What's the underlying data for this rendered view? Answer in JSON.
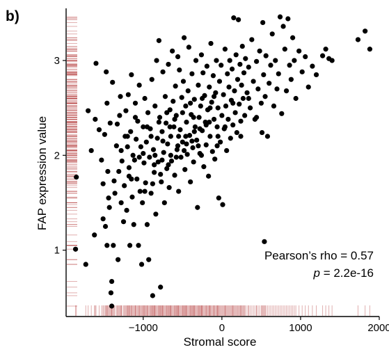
{
  "panel_label": "b)",
  "chart_data": {
    "type": "scatter",
    "xlabel": "Stromal score",
    "ylabel": "FAP expression value",
    "xlim": [
      -1980,
      2000
    ],
    "ylim": [
      0.3,
      3.55
    ],
    "x_ticks": [
      -1000,
      0,
      1000,
      2000
    ],
    "x_tick_labels": [
      "−1000",
      "0",
      "1000",
      "2000"
    ],
    "y_ticks": [
      1,
      2,
      3
    ],
    "y_tick_labels": [
      "1",
      "2",
      "3"
    ],
    "grid": false,
    "rug": true,
    "colors": {
      "points": "#000000",
      "rug": "#a51616",
      "axis": "#000000"
    },
    "annotation": {
      "line1": "Pearson’s rho = 0.57",
      "line2_italic": "p",
      "line2_rest": " = 2.2e-16"
    },
    "points": [
      [
        -1850,
        1.77
      ],
      [
        -1860,
        1.01
      ],
      [
        -1730,
        0.85
      ],
      [
        -1700,
        2.47
      ],
      [
        -1660,
        2.05
      ],
      [
        -1620,
        1.16
      ],
      [
        -1610,
        2.38
      ],
      [
        -1600,
        2.97
      ],
      [
        -1560,
        2.27
      ],
      [
        -1530,
        1.95
      ],
      [
        -1510,
        1.7
      ],
      [
        -1510,
        1.33
      ],
      [
        -1490,
        2.22
      ],
      [
        -1480,
        1.25
      ],
      [
        -1470,
        2.88
      ],
      [
        -1460,
        2.55
      ],
      [
        -1460,
        1.05
      ],
      [
        -1450,
        1.83
      ],
      [
        -1440,
        1.55
      ],
      [
        -1430,
        1.45
      ],
      [
        -1420,
        2.34
      ],
      [
        -1410,
        0.55
      ],
      [
        -1400,
        0.67
      ],
      [
        -1400,
        0.41
      ],
      [
        -1390,
        2.77
      ],
      [
        -1380,
        1.05
      ],
      [
        -1370,
        1.73
      ],
      [
        -1360,
        1.6
      ],
      [
        -1340,
        2.1
      ],
      [
        -1330,
        2.33
      ],
      [
        -1320,
        0.9
      ],
      [
        -1310,
        1.83
      ],
      [
        -1300,
        2.42
      ],
      [
        -1290,
        2.62
      ],
      [
        -1280,
        2.05
      ],
      [
        -1270,
        1.94
      ],
      [
        -1250,
        1.3
      ],
      [
        -1240,
        1.68
      ],
      [
        -1230,
        2.2
      ],
      [
        -1220,
        2.47
      ],
      [
        -1210,
        1.42
      ],
      [
        -1200,
        2.09
      ],
      [
        -1190,
        2.64
      ],
      [
        -1180,
        1.87
      ],
      [
        -1170,
        1.05
      ],
      [
        -1160,
        2.25
      ],
      [
        -1150,
        2.85
      ],
      [
        -1140,
        1.56
      ],
      [
        -1130,
        2.0
      ],
      [
        -1120,
        1.27
      ],
      [
        -1110,
        1.95
      ],
      [
        -1100,
        2.55
      ],
      [
        -1090,
        2.17
      ],
      [
        -1080,
        1.75
      ],
      [
        -1070,
        2.36
      ],
      [
        -1060,
        1.05
      ],
      [
        -1050,
        2.74
      ],
      [
        -1040,
        1.62
      ],
      [
        -1030,
        2.09
      ],
      [
        -1020,
        0.85
      ],
      [
        -1010,
        1.5
      ],
      [
        -1000,
        2.3
      ],
      [
        -990,
        1.92
      ],
      [
        -980,
        2.6
      ],
      [
        -970,
        1.71
      ],
      [
        -960,
        2.14
      ],
      [
        -950,
        1.27
      ],
      [
        -940,
        2.45
      ],
      [
        -930,
        0.9
      ],
      [
        -920,
        1.98
      ],
      [
        -910,
        2.28
      ],
      [
        -900,
        1.6
      ],
      [
        -890,
        2.8
      ],
      [
        -880,
        0.52
      ],
      [
        -870,
        2.06
      ],
      [
        -860,
        1.82
      ],
      [
        -850,
        2.52
      ],
      [
        -840,
        1.38
      ],
      [
        -830,
        3.0
      ],
      [
        -820,
        2.18
      ],
      [
        -810,
        1.93
      ],
      [
        -800,
        3.21
      ],
      [
        -790,
        2.4
      ],
      [
        -780,
        0.61
      ],
      [
        -770,
        1.72
      ],
      [
        -760,
        2.25
      ],
      [
        -750,
        2.88
      ],
      [
        -740,
        2.03
      ],
      [
        -730,
        1.5
      ],
      [
        -720,
        2.62
      ],
      [
        -710,
        2.34
      ],
      [
        -700,
        1.86
      ],
      [
        -690,
        2.12
      ],
      [
        -680,
        2.96
      ],
      [
        -670,
        1.66
      ],
      [
        -660,
        2.48
      ],
      [
        -650,
        2.2
      ],
      [
        -640,
        1.94
      ],
      [
        -630,
        3.1
      ],
      [
        -620,
        2.57
      ],
      [
        -610,
        2.3
      ],
      [
        -600,
        1.79
      ],
      [
        -590,
        2.73
      ],
      [
        -580,
        2.42
      ],
      [
        -570,
        2.06
      ],
      [
        -560,
        3.04
      ],
      [
        -550,
        1.62
      ],
      [
        -540,
        2.9
      ],
      [
        -530,
        2.27
      ],
      [
        -520,
        1.98
      ],
      [
        -510,
        2.61
      ],
      [
        -500,
        2.14
      ],
      [
        -490,
        2.78
      ],
      [
        -480,
        3.24
      ],
      [
        -470,
        1.85
      ],
      [
        -460,
        2.52
      ],
      [
        -450,
        2.35
      ],
      [
        -440,
        2.01
      ],
      [
        -430,
        2.68
      ],
      [
        -420,
        3.14
      ],
      [
        -410,
        2.21
      ],
      [
        -400,
        1.72
      ],
      [
        -390,
        2.43
      ],
      [
        -380,
        2.86
      ],
      [
        -370,
        2.08
      ],
      [
        -360,
        1.93
      ],
      [
        -350,
        2.59
      ],
      [
        -340,
        2.3
      ],
      [
        -330,
        3.0
      ],
      [
        -320,
        2.16
      ],
      [
        -310,
        1.45
      ],
      [
        -300,
        2.74
      ],
      [
        -290,
        2.4
      ],
      [
        -280,
        2.02
      ],
      [
        -270,
        2.52
      ],
      [
        -260,
        3.06
      ],
      [
        -250,
        2.26
      ],
      [
        -240,
        2.87
      ],
      [
        -230,
        1.88
      ],
      [
        -220,
        2.63
      ],
      [
        -210,
        2.35
      ],
      [
        -200,
        2.11
      ],
      [
        -190,
        2.94
      ],
      [
        -180,
        2.48
      ],
      [
        -170,
        1.78
      ],
      [
        -160,
        2.72
      ],
      [
        -150,
        2.2
      ],
      [
        -140,
        3.18
      ],
      [
        -130,
        2.56
      ],
      [
        -120,
        2.04
      ],
      [
        -110,
        2.84
      ],
      [
        -100,
        2.38
      ],
      [
        -90,
        1.96
      ],
      [
        -80,
        2.66
      ],
      [
        -70,
        3.0
      ],
      [
        -60,
        2.3
      ],
      [
        -50,
        2.5
      ],
      [
        -40,
        1.55
      ],
      [
        -30,
        2.78
      ],
      [
        -20,
        2.14
      ],
      [
        -10,
        2.95
      ],
      [
        0,
        2.42
      ],
      [
        10,
        1.48
      ],
      [
        20,
        2.64
      ],
      [
        30,
        2.28
      ],
      [
        40,
        3.12
      ],
      [
        50,
        2.52
      ],
      [
        60,
        2.05
      ],
      [
        70,
        2.86
      ],
      [
        80,
        2.38
      ],
      [
        90,
        2.72
      ],
      [
        100,
        3.0
      ],
      [
        110,
        2.18
      ],
      [
        120,
        2.58
      ],
      [
        130,
        2.91
      ],
      [
        140,
        2.32
      ],
      [
        150,
        3.45
      ],
      [
        160,
        2.68
      ],
      [
        170,
        2.45
      ],
      [
        180,
        3.06
      ],
      [
        190,
        2.24
      ],
      [
        200,
        2.8
      ],
      [
        210,
        3.43
      ],
      [
        220,
        2.54
      ],
      [
        230,
        2.96
      ],
      [
        240,
        2.36
      ],
      [
        250,
        2.74
      ],
      [
        260,
        3.15
      ],
      [
        270,
        2.6
      ],
      [
        280,
        2.87
      ],
      [
        290,
        2.42
      ],
      [
        300,
        3.02
      ],
      [
        320,
        2.66
      ],
      [
        340,
        2.93
      ],
      [
        360,
        2.5
      ],
      [
        380,
        3.22
      ],
      [
        400,
        2.78
      ],
      [
        420,
        2.38
      ],
      [
        440,
        2.99
      ],
      [
        460,
        2.7
      ],
      [
        480,
        3.1
      ],
      [
        500,
        2.55
      ],
      [
        510,
        2.24
      ],
      [
        520,
        3.4
      ],
      [
        530,
        2.85
      ],
      [
        540,
        1.09
      ],
      [
        550,
        2.62
      ],
      [
        560,
        3.05
      ],
      [
        580,
        2.2
      ],
      [
        600,
        2.76
      ],
      [
        620,
        2.95
      ],
      [
        640,
        3.28
      ],
      [
        660,
        2.52
      ],
      [
        680,
        3.0
      ],
      [
        700,
        2.7
      ],
      [
        720,
        2.86
      ],
      [
        740,
        3.46
      ],
      [
        760,
        2.44
      ],
      [
        780,
        3.36
      ],
      [
        800,
        3.12
      ],
      [
        820,
        2.68
      ],
      [
        840,
        3.44
      ],
      [
        860,
        2.95
      ],
      [
        880,
        2.8
      ],
      [
        900,
        3.24
      ],
      [
        920,
        3.0
      ],
      [
        940,
        2.6
      ],
      [
        980,
        3.1
      ],
      [
        1020,
        2.88
      ],
      [
        1060,
        3.04
      ],
      [
        1100,
        2.72
      ],
      [
        1150,
        2.94
      ],
      [
        1200,
        2.85
      ],
      [
        1280,
        3.05
      ],
      [
        1320,
        3.12
      ],
      [
        1360,
        3.02
      ],
      [
        1400,
        3.0
      ],
      [
        1730,
        3.22
      ],
      [
        1820,
        3.31
      ],
      [
        1880,
        3.12
      ],
      [
        -1200,
        2.2
      ],
      [
        -1150,
        1.75
      ],
      [
        -1100,
        2.4
      ],
      [
        -1050,
        1.98
      ],
      [
        -1000,
        2.02
      ],
      [
        -950,
        2.3
      ],
      [
        -900,
        2.2
      ],
      [
        -850,
        2.0
      ],
      [
        -800,
        2.35
      ],
      [
        -750,
        2.15
      ],
      [
        -700,
        2.45
      ],
      [
        -650,
        2.0
      ],
      [
        -600,
        2.38
      ],
      [
        -550,
        2.2
      ],
      [
        -500,
        2.45
      ],
      [
        -450,
        2.12
      ],
      [
        -400,
        2.55
      ],
      [
        -350,
        2.25
      ],
      [
        -300,
        2.1
      ],
      [
        -250,
        2.6
      ],
      [
        -200,
        2.32
      ],
      [
        -150,
        2.5
      ],
      [
        -100,
        2.62
      ],
      [
        -50,
        2.2
      ],
      [
        -860,
        1.9
      ],
      [
        -760,
        1.95
      ],
      [
        -660,
        2.3
      ],
      [
        -560,
        2.1
      ],
      [
        -460,
        2.2
      ],
      [
        -360,
        2.4
      ],
      [
        -260,
        2.0
      ],
      [
        -160,
        2.35
      ],
      [
        -60,
        2.1
      ],
      [
        40,
        2.3
      ],
      [
        140,
        2.55
      ],
      [
        240,
        2.2
      ],
      [
        340,
        2.6
      ],
      [
        440,
        2.4
      ],
      [
        -1280,
        1.5
      ],
      [
        -1180,
        1.78
      ],
      [
        -980,
        1.62
      ],
      [
        -880,
        1.7
      ],
      [
        -780,
        1.8
      ],
      [
        -680,
        1.9
      ],
      [
        -580,
        1.98
      ],
      [
        -480,
        2.05
      ],
      [
        -380,
        2.15
      ],
      [
        -280,
        2.28
      ]
    ]
  }
}
